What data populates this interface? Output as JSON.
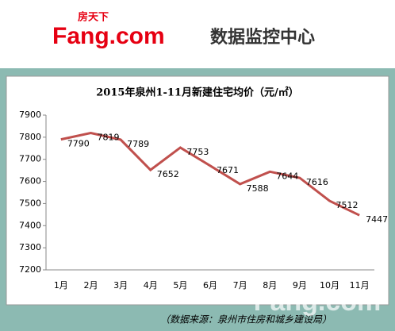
{
  "header": {
    "brand_cn": "房天下",
    "brand_en": "Fang.com",
    "monitor": "数据监控中心"
  },
  "chart_data": {
    "type": "line",
    "title": "2015年泉州1-11月新建住宅均价（元/㎡）",
    "categories": [
      "1月",
      "2月",
      "3月",
      "4月",
      "5月",
      "6月",
      "7月",
      "8月",
      "9月",
      "10月",
      "11月"
    ],
    "values": [
      7790,
      7819,
      7789,
      7652,
      7753,
      7671,
      7588,
      7644,
      7616,
      7512,
      7447
    ],
    "color": "#c0504d",
    "ylim": [
      7200,
      7900
    ],
    "yticks": [
      7200,
      7300,
      7400,
      7500,
      7600,
      7700,
      7800,
      7900
    ],
    "grid": false
  },
  "source": "（数据来源：泉州市住房和城乡建设局）",
  "watermark": "Fang.com"
}
